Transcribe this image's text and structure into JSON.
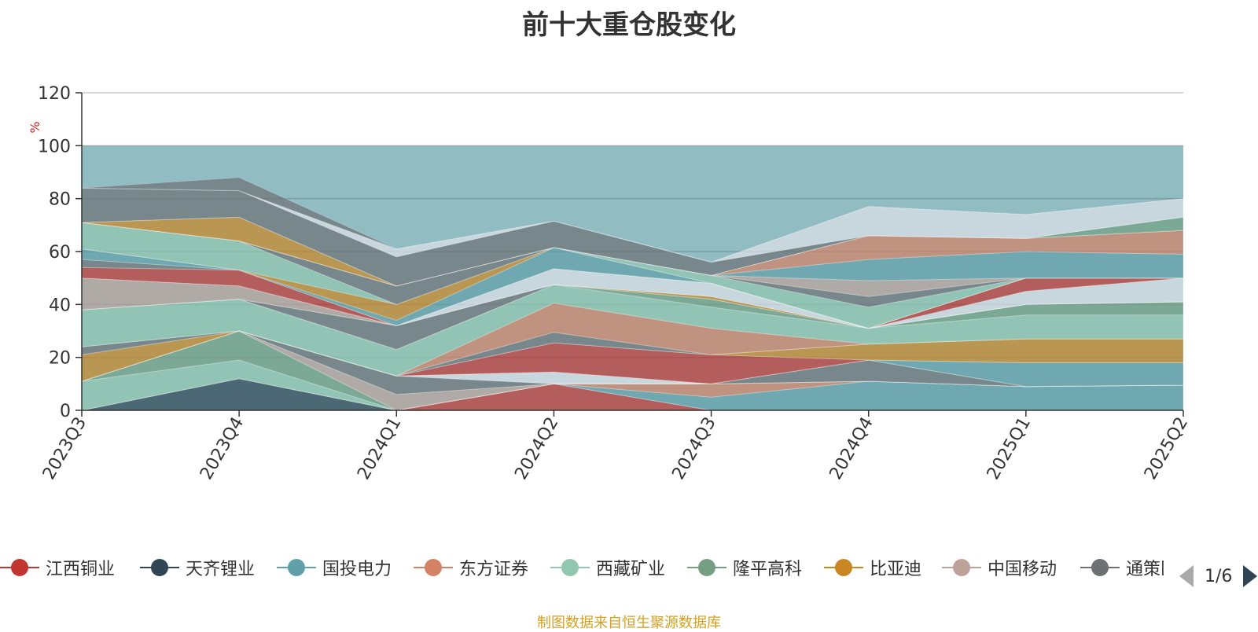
{
  "title": "前十大重仓股变化",
  "source_note": "制图数据来自恒生聚源数据库",
  "pager": {
    "text": "1/6"
  },
  "legend": [
    {
      "name": "江西铜业",
      "color": "#c23531"
    },
    {
      "name": "天齐锂业",
      "color": "#2f4554"
    },
    {
      "name": "国投电力",
      "color": "#61a0a8"
    },
    {
      "name": "东方证券",
      "color": "#d48265"
    },
    {
      "name": "西藏矿业",
      "color": "#91c7ae"
    },
    {
      "name": "隆平高科",
      "color": "#749f83"
    },
    {
      "name": "比亚迪",
      "color": "#ca8622"
    },
    {
      "name": "中国移动",
      "color": "#bda29a"
    },
    {
      "name": "通策医疗",
      "color": "#6e7074"
    }
  ],
  "chart_data": {
    "type": "area",
    "stacked": true,
    "categories": [
      "2023Q3",
      "2023Q4",
      "2024Q1",
      "2024Q2",
      "2024Q3",
      "2024Q4",
      "2025Q1",
      "2025Q2"
    ],
    "ylabel": "%",
    "ylim": [
      0,
      120
    ],
    "yticks": [
      0,
      20,
      40,
      60,
      80,
      100,
      120
    ],
    "grid": true,
    "background_series_color": "#61a0a8",
    "series": [
      {
        "color": "#c23531",
        "values": [
          0,
          0,
          0,
          10,
          0,
          0,
          0,
          0
        ]
      },
      {
        "color": "#2f4554",
        "values": [
          0,
          12,
          0,
          0,
          0,
          0,
          0,
          0
        ]
      },
      {
        "color": "#61a0a8",
        "values": [
          0,
          0,
          0,
          0,
          5,
          11,
          9,
          9.5
        ]
      },
      {
        "color": "#d48265",
        "values": [
          0,
          0,
          0,
          0,
          5,
          0,
          0,
          0
        ]
      },
      {
        "color": "#91c7ae",
        "values": [
          11,
          7,
          0,
          0,
          0,
          0,
          0,
          0
        ]
      },
      {
        "color": "#749f83",
        "values": [
          0,
          11,
          0,
          0,
          0,
          0,
          0,
          0
        ]
      },
      {
        "color": "#bda29a",
        "values": [
          0,
          0,
          6,
          0,
          0,
          0,
          0,
          0
        ]
      },
      {
        "color": "#6e7074",
        "values": [
          0,
          0,
          7,
          0,
          0,
          8,
          0,
          0
        ]
      },
      {
        "color": "#dfe2e8",
        "values": [
          0,
          0,
          0,
          4.5,
          0,
          0,
          0,
          0
        ]
      },
      {
        "color": "#61a0a8",
        "values": [
          0,
          0,
          0,
          0,
          0,
          0,
          9,
          8.5
        ]
      },
      {
        "color": "#c23531",
        "values": [
          0,
          0,
          0,
          11,
          11,
          0,
          0,
          0
        ]
      },
      {
        "color": "#ca8622",
        "values": [
          10,
          0,
          0,
          0,
          0,
          6,
          9,
          9
        ]
      },
      {
        "color": "#6e7074",
        "values": [
          3,
          0,
          0,
          4,
          0,
          0,
          0,
          0
        ]
      },
      {
        "color": "#d48265",
        "values": [
          0,
          0,
          0,
          11,
          10,
          0,
          0,
          0
        ]
      },
      {
        "color": "#91c7ae",
        "values": [
          14,
          12,
          10,
          7,
          8,
          6,
          9,
          9
        ]
      },
      {
        "color": "#749f83",
        "values": [
          0,
          0,
          0,
          0,
          3,
          0,
          4,
          5
        ]
      },
      {
        "color": "#6e7074",
        "values": [
          0,
          0,
          9,
          0,
          0,
          0,
          0,
          0
        ]
      },
      {
        "color": "#ca8622",
        "values": [
          0,
          0,
          0,
          0,
          1,
          0,
          0,
          0
        ]
      },
      {
        "color": "#bda29a",
        "values": [
          12,
          5,
          0,
          0,
          0,
          0,
          0,
          0
        ]
      },
      {
        "color": "#dfe2e8",
        "values": [
          0,
          0,
          0,
          6,
          5,
          0,
          5,
          9
        ]
      },
      {
        "color": "#c23531",
        "values": [
          4,
          6,
          0,
          0,
          0,
          0,
          5,
          0
        ]
      },
      {
        "color": "#6e7074",
        "values": [
          3,
          0,
          0,
          0,
          0,
          0,
          0,
          0
        ]
      },
      {
        "color": "#61a0a8",
        "values": [
          4,
          0,
          2,
          8,
          0,
          0,
          0,
          0
        ]
      },
      {
        "color": "#ca8622",
        "values": [
          0,
          0,
          6,
          0,
          0,
          0,
          0,
          0
        ]
      },
      {
        "color": "#91c7ae",
        "values": [
          10,
          11,
          0,
          0,
          3,
          8,
          0,
          0
        ]
      },
      {
        "color": "#6e7074",
        "values": [
          0,
          0,
          7,
          0,
          0,
          4,
          0,
          0
        ]
      },
      {
        "color": "#bda29a",
        "values": [
          0,
          0,
          0,
          0,
          0,
          6,
          0,
          0
        ]
      },
      {
        "color": "#61a0a8",
        "values": [
          0,
          0,
          0,
          0,
          0,
          8,
          10,
          9
        ]
      },
      {
        "color": "#d48265",
        "values": [
          0,
          0,
          0,
          0,
          0,
          9,
          5,
          9
        ]
      },
      {
        "color": "#ca8622",
        "values": [
          0,
          9,
          0,
          0,
          0,
          0,
          0,
          0
        ]
      },
      {
        "color": "#749f83",
        "values": [
          0,
          0,
          0,
          0,
          0,
          0,
          0,
          5
        ]
      },
      {
        "color": "#6e7074",
        "values": [
          13,
          10,
          11,
          10,
          5,
          0,
          0,
          0
        ]
      },
      {
        "color": "#dfe2e8",
        "values": [
          0,
          0,
          3,
          0,
          0,
          11,
          9,
          7
        ]
      },
      {
        "color": "#6e7074",
        "values": [
          0,
          5,
          0,
          0,
          0,
          0,
          0,
          0
        ]
      }
    ]
  }
}
